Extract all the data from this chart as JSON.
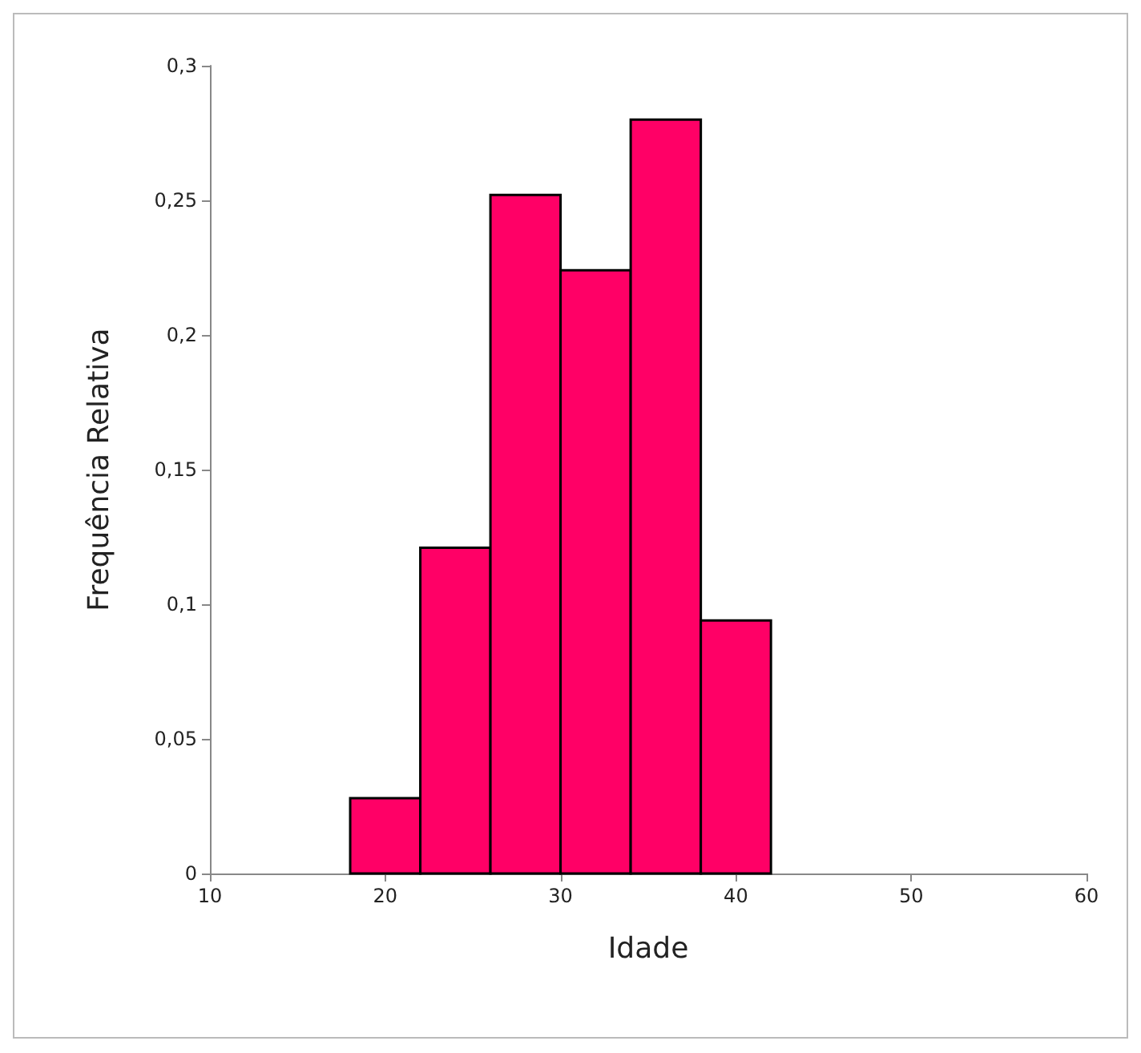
{
  "chart_data": {
    "type": "histogram",
    "xlabel": "Idade",
    "ylabel": "Frequência Relativa",
    "bins": [
      18,
      22,
      26,
      30,
      34,
      38,
      42
    ],
    "values": [
      0.028,
      0.121,
      0.252,
      0.224,
      0.28,
      0.094
    ],
    "color": "#ff0066",
    "xlim": [
      10,
      60
    ],
    "xticks": [
      10,
      20,
      30,
      40,
      50,
      60
    ],
    "ylim": [
      0,
      0.3
    ],
    "yticks": [
      0,
      {
        "value": 0.05,
        "label": "0,05"
      },
      {
        "value": 0.1,
        "label": "0,1"
      },
      {
        "value": 0.15,
        "label": "0,15"
      },
      {
        "value": 0.2,
        "label": "0,2"
      },
      {
        "value": 0.25,
        "label": "0,25"
      },
      {
        "value": 0.3,
        "label": "0,3"
      }
    ],
    "grid": false
  }
}
